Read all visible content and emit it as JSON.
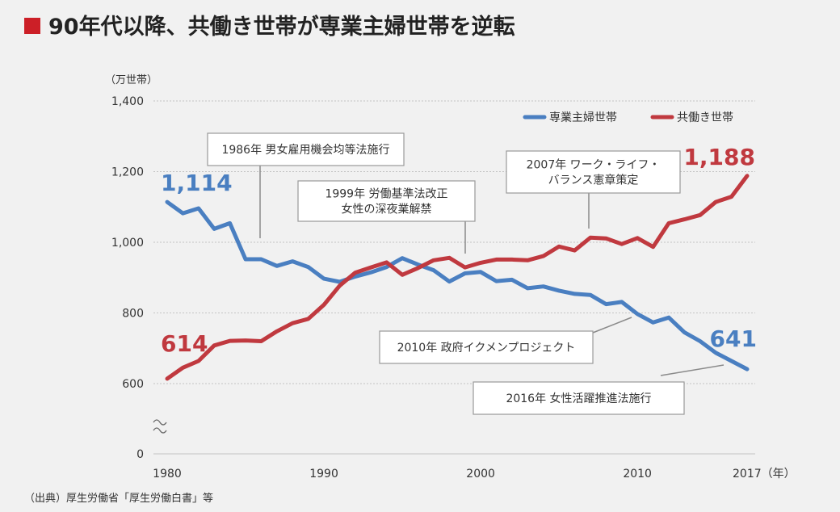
{
  "header": {
    "title": "90年代以降、共働き世帯が専業主婦世帯を逆転"
  },
  "source_note": "（出典）厚生労働省「厚生労働白書」等",
  "colors": {
    "housewife": "#4a7fc1",
    "dual": "#c0393f",
    "title_square": "#cc1f27",
    "grid": "#c4c4c4"
  },
  "chart_data": {
    "type": "line",
    "title": "90年代以降、共働き世帯が専業主婦世帯を逆転",
    "ylabel": "（万世帯）",
    "xlabel": "",
    "x_tick_labels": [
      "1980",
      "1990",
      "2000",
      "2010",
      "2017（年）"
    ],
    "y_tick_labels": [
      "0",
      "600",
      "800",
      "1,000",
      "1,200",
      "1,400"
    ],
    "ylim": [
      0,
      1400
    ],
    "axis_break": true,
    "grid": true,
    "legend_position": "top-right",
    "x": [
      1980,
      1981,
      1982,
      1983,
      1984,
      1985,
      1986,
      1987,
      1988,
      1989,
      1990,
      1991,
      1992,
      1993,
      1994,
      1995,
      1996,
      1997,
      1998,
      1999,
      2000,
      2001,
      2002,
      2003,
      2004,
      2005,
      2006,
      2007,
      2008,
      2009,
      2010,
      2011,
      2012,
      2013,
      2014,
      2015,
      2016,
      2017
    ],
    "series": [
      {
        "name": "専業主婦世帯",
        "color": "#4a7fc1",
        "values": [
          1114,
          1082,
          1096,
          1038,
          1054,
          952,
          952,
          933,
          946,
          930,
          897,
          888,
          903,
          915,
          930,
          955,
          937,
          921,
          889,
          912,
          916,
          890,
          894,
          870,
          875,
          863,
          854,
          851,
          825,
          831,
          797,
          773,
          787,
          745,
          720,
          687,
          664,
          641
        ]
      },
      {
        "name": "共働き世帯",
        "color": "#c0393f",
        "values": [
          614,
          645,
          664,
          708,
          721,
          722,
          720,
          748,
          771,
          783,
          823,
          877,
          914,
          929,
          943,
          908,
          927,
          949,
          956,
          929,
          942,
          951,
          951,
          949,
          961,
          988,
          977,
          1013,
          1011,
          995,
          1012,
          987,
          1054,
          1065,
          1077,
          1114,
          1129,
          1188
        ]
      }
    ],
    "data_labels": [
      {
        "text": "1,114",
        "series": "専業主婦世帯",
        "x": 1980,
        "y": 1114
      },
      {
        "text": "614",
        "series": "共働き世帯",
        "x": 1980,
        "y": 614
      },
      {
        "text": "641",
        "series": "専業主婦世帯",
        "x": 2017,
        "y": 641
      },
      {
        "text": "1,188",
        "series": "共働き世帯",
        "x": 2017,
        "y": 1188
      }
    ],
    "annotations": [
      {
        "lines": [
          "1986年 男女雇用機会均等法施行"
        ],
        "x": 1986,
        "y": 1000
      },
      {
        "lines": [
          "1999年 労働基準法改正",
          "女性の深夜業解禁"
        ],
        "x": 1999,
        "y": 962
      },
      {
        "lines": [
          "2007年 ワーク・ライフ・",
          "バランス憲章策定"
        ],
        "x": 2007,
        "y": 1030
      },
      {
        "lines": [
          "2010年 政府イクメンプロジェクト"
        ],
        "x": 2010,
        "y": 797
      },
      {
        "lines": [
          "2016年 女性活躍推進法施行"
        ],
        "x": 2016,
        "y": 664
      }
    ]
  }
}
